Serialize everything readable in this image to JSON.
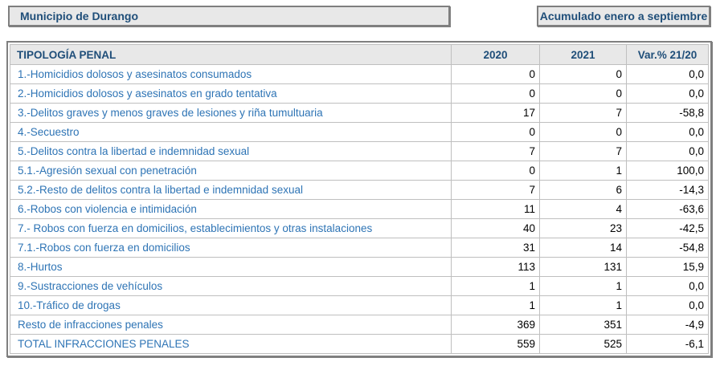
{
  "header": {
    "municipality_label": "Municipio de Durango",
    "period_label": "Acumulado enero a septiembre"
  },
  "table": {
    "headers": [
      "TIPOLOGÍA PENAL",
      "2020",
      "2021",
      "Var.% 21/20"
    ],
    "rows": [
      {
        "label": "1.-Homicidios dolosos y asesinatos consumados",
        "y2020": "0",
        "y2021": "0",
        "var": "0,0"
      },
      {
        "label": "2.-Homicidios dolosos y asesinatos en grado tentativa",
        "y2020": "0",
        "y2021": "0",
        "var": "0,0"
      },
      {
        "label": "3.-Delitos graves y menos graves de lesiones y riña tumultuaria",
        "y2020": "17",
        "y2021": "7",
        "var": "-58,8"
      },
      {
        "label": "4.-Secuestro",
        "y2020": "0",
        "y2021": "0",
        "var": "0,0"
      },
      {
        "label": "5.-Delitos contra la libertad e indemnidad sexual",
        "y2020": "7",
        "y2021": "7",
        "var": "0,0"
      },
      {
        "label": "5.1.-Agresión sexual con penetración",
        "y2020": "0",
        "y2021": "1",
        "var": "100,0"
      },
      {
        "label": "5.2.-Resto de delitos contra la libertad e indemnidad sexual",
        "y2020": "7",
        "y2021": "6",
        "var": "-14,3"
      },
      {
        "label": "6.-Robos con violencia e intimidación",
        "y2020": "11",
        "y2021": "4",
        "var": "-63,6"
      },
      {
        "label": "7.- Robos con fuerza en domicilios, establecimientos y otras instalaciones",
        "y2020": "40",
        "y2021": "23",
        "var": "-42,5"
      },
      {
        "label": "7.1.-Robos con fuerza en domicilios",
        "y2020": "31",
        "y2021": "14",
        "var": "-54,8"
      },
      {
        "label": "8.-Hurtos",
        "y2020": "113",
        "y2021": "131",
        "var": "15,9"
      },
      {
        "label": "9.-Sustracciones de vehículos",
        "y2020": "1",
        "y2021": "1",
        "var": "0,0"
      },
      {
        "label": "10.-Tráfico de drogas",
        "y2020": "1",
        "y2021": "1",
        "var": "0,0"
      },
      {
        "label": "Resto de infracciones penales",
        "y2020": "369",
        "y2021": "351",
        "var": "-4,9"
      },
      {
        "label": "TOTAL INFRACCIONES PENALES",
        "y2020": "559",
        "y2021": "525",
        "var": "-6,1",
        "total": true
      }
    ]
  },
  "colors": {
    "title_text": "#1f4e79",
    "row_label_text": "#2e74b5",
    "number_text": "#000000",
    "box_background": "#e8e8e8",
    "outer_border": "#7f7f7f",
    "gridline": "#bfbfbf"
  }
}
